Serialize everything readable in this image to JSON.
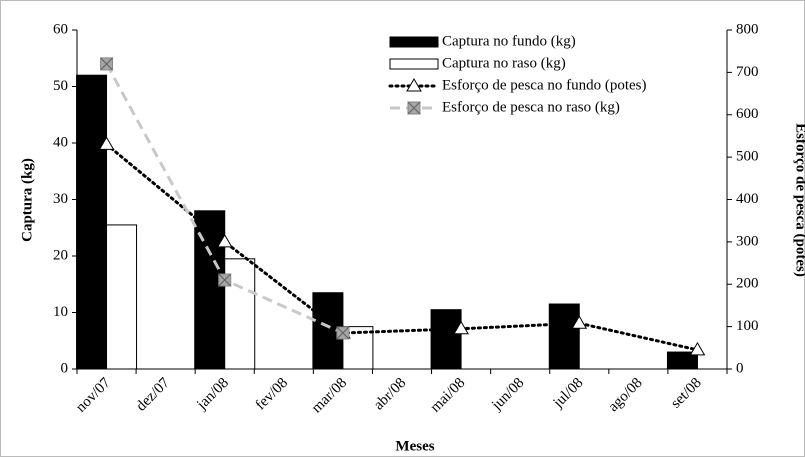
{
  "chart_data": {
    "type": "bar-line",
    "categories": [
      "nov/07",
      "dez/07",
      "jan/08",
      "fev/08",
      "mar/08",
      "abr/08",
      "mai/08",
      "jun/08",
      "jul/08",
      "ago/08",
      "set/08"
    ],
    "xlabel": "Meses",
    "ylabel": "Captura (kg)",
    "y2label": "Esforço de pesca (potes)",
    "ylim": [
      0,
      60
    ],
    "yticks": [
      0,
      10,
      20,
      30,
      40,
      50,
      60
    ],
    "y2lim": [
      0,
      800
    ],
    "y2ticks": [
      0,
      100,
      200,
      300,
      400,
      500,
      600,
      700,
      800
    ],
    "legend": "upper right",
    "series": [
      {
        "name": "Captura no fundo (kg)",
        "kind": "bar",
        "color": "#000000",
        "values": [
          52,
          null,
          28,
          null,
          13.5,
          null,
          10.5,
          null,
          11.5,
          null,
          3
        ]
      },
      {
        "name": "Captura no raso (kg)",
        "kind": "bar",
        "color": "#ffffff",
        "values": [
          25.5,
          null,
          19.5,
          null,
          7.5,
          null,
          null,
          null,
          null,
          null,
          null
        ]
      },
      {
        "name": "Esforço de pesca no fundo (potes)",
        "kind": "line",
        "axis": "y2",
        "color": "#000000",
        "dash": "dotted",
        "marker": "triangle",
        "x": [
          "nov/07",
          "jan/08",
          "mar/08",
          "mai/08",
          "jul/08",
          "set/08"
        ],
        "values": [
          530,
          300,
          85,
          95,
          108,
          45
        ]
      },
      {
        "name": "Esforço de pesca no raso (kg)",
        "kind": "line",
        "axis": "y2",
        "color": "#c8c8c8",
        "dash": "dashed",
        "marker": "square-x",
        "x": [
          "nov/07",
          "jan/08",
          "mar/08"
        ],
        "values": [
          720,
          210,
          85
        ]
      }
    ]
  }
}
